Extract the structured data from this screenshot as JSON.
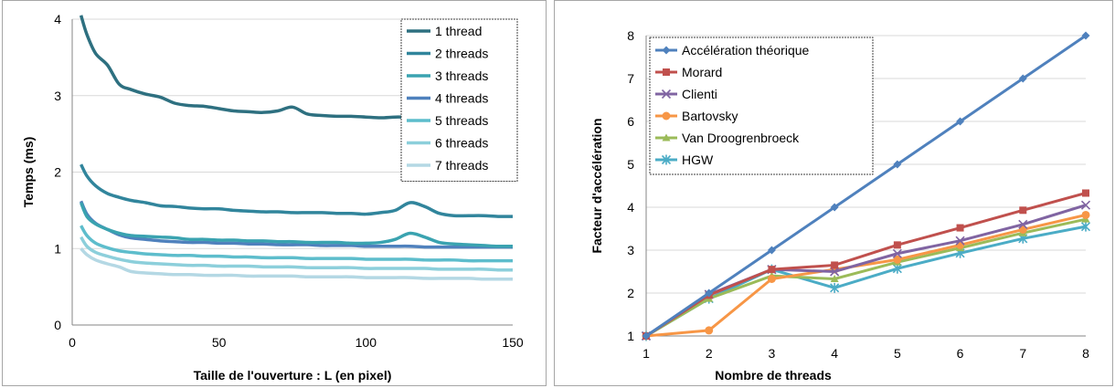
{
  "chart_data": [
    {
      "type": "line",
      "title": "",
      "xlabel": "Taille de l'ouverture : L (en pixel)",
      "ylabel": "Temps (ms)",
      "xlim": [
        0,
        150
      ],
      "ylim": [
        0,
        4
      ],
      "xticks": [
        "0",
        "50",
        "100",
        "150"
      ],
      "yticks": [
        "0",
        "1",
        "2",
        "3",
        "4"
      ],
      "grid": true,
      "legend": "top-right",
      "x": [
        3,
        5,
        8,
        12,
        16,
        20,
        25,
        30,
        35,
        40,
        45,
        50,
        55,
        60,
        65,
        70,
        75,
        80,
        85,
        90,
        95,
        100,
        105,
        110,
        115,
        120,
        125,
        130,
        135,
        140,
        145,
        150
      ],
      "series": [
        {
          "name": "1 thread",
          "color": "#2e7080",
          "values": [
            4.05,
            3.8,
            3.55,
            3.4,
            3.15,
            3.08,
            3.02,
            2.98,
            2.9,
            2.87,
            2.86,
            2.83,
            2.8,
            2.79,
            2.78,
            2.8,
            2.85,
            2.76,
            2.74,
            2.73,
            2.73,
            2.72,
            2.71,
            2.72,
            2.72,
            2.73,
            2.74,
            2.72,
            2.71,
            2.71,
            2.7,
            2.7
          ]
        },
        {
          "name": "2 threads",
          "color": "#31859c",
          "values": [
            2.1,
            1.95,
            1.82,
            1.72,
            1.67,
            1.63,
            1.6,
            1.56,
            1.55,
            1.53,
            1.52,
            1.52,
            1.5,
            1.49,
            1.48,
            1.48,
            1.47,
            1.47,
            1.47,
            1.46,
            1.46,
            1.45,
            1.47,
            1.5,
            1.6,
            1.55,
            1.46,
            1.43,
            1.43,
            1.43,
            1.42,
            1.42
          ]
        },
        {
          "name": "3 threads",
          "color": "#3aa3b0",
          "values": [
            1.6,
            1.42,
            1.32,
            1.25,
            1.2,
            1.17,
            1.16,
            1.15,
            1.14,
            1.12,
            1.12,
            1.11,
            1.11,
            1.1,
            1.1,
            1.09,
            1.09,
            1.08,
            1.08,
            1.08,
            1.07,
            1.07,
            1.08,
            1.12,
            1.2,
            1.15,
            1.08,
            1.06,
            1.05,
            1.04,
            1.03,
            1.03
          ]
        },
        {
          "name": "4 threads",
          "color": "#4f81bd",
          "values": [
            1.62,
            1.45,
            1.33,
            1.25,
            1.18,
            1.14,
            1.12,
            1.1,
            1.09,
            1.08,
            1.08,
            1.07,
            1.07,
            1.06,
            1.06,
            1.05,
            1.05,
            1.05,
            1.04,
            1.04,
            1.04,
            1.03,
            1.03,
            1.03,
            1.03,
            1.02,
            1.02,
            1.02,
            1.02,
            1.02,
            1.02,
            1.02
          ]
        },
        {
          "name": "5 threads",
          "color": "#5dbdcc",
          "values": [
            1.3,
            1.17,
            1.07,
            1.01,
            0.97,
            0.95,
            0.93,
            0.92,
            0.91,
            0.91,
            0.9,
            0.9,
            0.89,
            0.89,
            0.88,
            0.88,
            0.88,
            0.87,
            0.87,
            0.87,
            0.87,
            0.86,
            0.86,
            0.86,
            0.86,
            0.85,
            0.85,
            0.85,
            0.84,
            0.84,
            0.84,
            0.84
          ]
        },
        {
          "name": "6 threads",
          "color": "#8ccfdb",
          "values": [
            1.15,
            1.03,
            0.95,
            0.9,
            0.86,
            0.83,
            0.81,
            0.8,
            0.79,
            0.78,
            0.78,
            0.77,
            0.77,
            0.77,
            0.76,
            0.76,
            0.76,
            0.75,
            0.75,
            0.75,
            0.75,
            0.74,
            0.74,
            0.74,
            0.74,
            0.74,
            0.73,
            0.73,
            0.73,
            0.73,
            0.72,
            0.72
          ]
        },
        {
          "name": "7 threads",
          "color": "#b4d8e4",
          "values": [
            1.0,
            0.92,
            0.85,
            0.8,
            0.76,
            0.7,
            0.68,
            0.67,
            0.66,
            0.66,
            0.65,
            0.65,
            0.65,
            0.64,
            0.64,
            0.64,
            0.64,
            0.63,
            0.63,
            0.63,
            0.63,
            0.62,
            0.62,
            0.62,
            0.62,
            0.61,
            0.61,
            0.61,
            0.61,
            0.6,
            0.6,
            0.6
          ]
        }
      ]
    },
    {
      "type": "line",
      "title": "",
      "xlabel": "Nombre de threads",
      "ylabel": "Facteur d'accélération",
      "xlim": [
        1,
        8
      ],
      "ylim": [
        1,
        8
      ],
      "xticks": [
        "1",
        "2",
        "3",
        "4",
        "5",
        "6",
        "7",
        "8"
      ],
      "yticks": [
        "1",
        "2",
        "3",
        "4",
        "5",
        "6",
        "7",
        "8"
      ],
      "grid": true,
      "legend": "top-left",
      "x": [
        1,
        2,
        3,
        4,
        5,
        6,
        7,
        8
      ],
      "series": [
        {
          "name": "Accélération théorique",
          "color": "#4f81bd",
          "marker": "diamond",
          "values": [
            1,
            2,
            3,
            4,
            5,
            6,
            7,
            8
          ]
        },
        {
          "name": "Morard",
          "color": "#c0504d",
          "marker": "square",
          "values": [
            1,
            1.95,
            2.55,
            2.65,
            3.12,
            3.52,
            3.93,
            4.33
          ]
        },
        {
          "name": "Clienti",
          "color": "#8064a2",
          "marker": "x",
          "values": [
            1,
            1.97,
            2.55,
            2.5,
            2.92,
            3.22,
            3.6,
            4.05
          ]
        },
        {
          "name": "Bartovsky",
          "color": "#f79646",
          "marker": "circle",
          "values": [
            1,
            1.13,
            2.33,
            2.55,
            2.78,
            3.12,
            3.48,
            3.82
          ]
        },
        {
          "name": "Van Droogrenbroeck",
          "color": "#9bbb59",
          "marker": "triangle",
          "values": [
            1,
            1.87,
            2.4,
            2.33,
            2.72,
            3.05,
            3.4,
            3.72
          ]
        },
        {
          "name": "HGW",
          "color": "#4bacc6",
          "marker": "star",
          "values": [
            1,
            1.87,
            2.55,
            2.12,
            2.57,
            2.93,
            3.27,
            3.55
          ]
        }
      ]
    }
  ]
}
